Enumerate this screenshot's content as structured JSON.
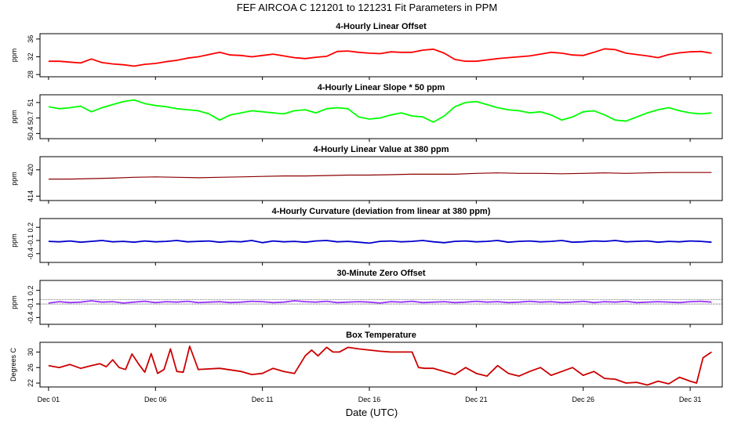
{
  "title": "FEF   AIRCOA C   121201 to 121231   Fit Parameters in PPM",
  "xlabel": "Date (UTC)",
  "xticks": [
    "Dec 01",
    "Dec 06",
    "Dec 11",
    "Dec 16",
    "Dec 21",
    "Dec 26",
    "Dec 31"
  ],
  "xtick_days": [
    1,
    6,
    11,
    16,
    21,
    26,
    31
  ],
  "xlim": [
    0.6,
    32.5
  ],
  "chart_data": [
    {
      "type": "line",
      "title": "4-Hourly Linear Offset",
      "ylabel": "ppm",
      "ylim": [
        27.5,
        37.2
      ],
      "yticks": [
        28,
        32,
        36
      ],
      "color": "#ff0000",
      "series": [
        {
          "x": [
            1,
            1.5,
            2,
            2.5,
            3,
            3.5,
            4,
            4.5,
            5,
            5.5,
            6,
            6.5,
            7,
            7.5,
            8,
            8.5,
            9,
            9.5,
            10,
            10.5,
            11,
            11.5,
            12,
            12.5,
            13,
            13.5,
            14,
            14.5,
            15,
            15.5,
            16,
            16.5,
            17,
            17.5,
            18,
            18.5,
            19,
            19.5,
            20,
            20.5,
            21,
            21.5,
            22,
            22.5,
            23,
            23.5,
            24,
            24.5,
            25,
            25.5,
            26,
            26.5,
            27,
            27.5,
            28,
            28.5,
            29,
            29.5,
            30,
            30.5,
            31,
            31.5,
            32
          ],
          "values": [
            31.0,
            31.0,
            30.8,
            30.6,
            31.5,
            30.7,
            30.4,
            30.2,
            29.9,
            30.3,
            30.5,
            30.9,
            31.2,
            31.7,
            32.0,
            32.5,
            33.0,
            32.4,
            32.3,
            32.0,
            32.3,
            32.6,
            32.2,
            31.8,
            31.6,
            31.9,
            32.1,
            33.2,
            33.3,
            33.0,
            32.8,
            32.7,
            33.1,
            33.0,
            33.0,
            33.5,
            33.7,
            32.8,
            31.4,
            31.0,
            31.0,
            31.3,
            31.6,
            31.8,
            32.0,
            32.2,
            32.6,
            33.0,
            32.8,
            32.4,
            32.3,
            33.0,
            33.8,
            33.6,
            32.8,
            32.5,
            32.2,
            31.8,
            32.5,
            32.9,
            33.1,
            33.2,
            32.8
          ]
        }
      ]
    },
    {
      "type": "line",
      "title": "4-Hourly Linear Slope * 50 ppm",
      "ylabel": "ppm",
      "ylim": [
        50.3,
        51.15
      ],
      "yticks": [
        50.4,
        50.7,
        51.0
      ],
      "color": "#00ff00",
      "series": [
        {
          "x": [
            1,
            1.5,
            2,
            2.5,
            3,
            3.5,
            4,
            4.5,
            5,
            5.5,
            6,
            6.5,
            7,
            7.5,
            8,
            8.5,
            9,
            9.5,
            10,
            10.5,
            11,
            11.5,
            12,
            12.5,
            13,
            13.5,
            14,
            14.5,
            15,
            15.5,
            16,
            16.5,
            17,
            17.5,
            18,
            18.5,
            19,
            19.5,
            20,
            20.5,
            21,
            21.5,
            22,
            22.5,
            23,
            23.5,
            24,
            24.5,
            25,
            25.5,
            26,
            26.5,
            27,
            27.5,
            28,
            28.5,
            29,
            29.5,
            30,
            30.5,
            31,
            31.5,
            32
          ],
          "values": [
            50.92,
            50.88,
            50.9,
            50.93,
            50.82,
            50.9,
            50.96,
            51.02,
            51.05,
            50.98,
            50.94,
            50.92,
            50.88,
            50.86,
            50.84,
            50.78,
            50.66,
            50.76,
            50.8,
            50.84,
            50.82,
            50.8,
            50.78,
            50.84,
            50.86,
            50.8,
            50.88,
            50.9,
            50.88,
            50.72,
            50.68,
            50.7,
            50.76,
            50.8,
            50.74,
            50.72,
            50.62,
            50.74,
            50.92,
            51.0,
            51.02,
            50.96,
            50.9,
            50.86,
            50.84,
            50.8,
            50.82,
            50.76,
            50.66,
            50.72,
            50.82,
            50.84,
            50.76,
            50.66,
            50.64,
            50.72,
            50.8,
            50.86,
            50.9,
            50.84,
            50.8,
            50.78,
            50.8
          ]
        }
      ]
    },
    {
      "type": "line",
      "title": "4-Hourly Linear Value at 380 ppm",
      "ylabel": "ppm",
      "ylim": [
        413.0,
        423.0
      ],
      "yticks": [
        414,
        420
      ],
      "color": "#8b0000",
      "series": [
        {
          "x": [
            1,
            2,
            3,
            4,
            5,
            6,
            7,
            8,
            9,
            10,
            11,
            12,
            13,
            14,
            15,
            16,
            17,
            18,
            19,
            20,
            21,
            22,
            23,
            24,
            25,
            26,
            27,
            28,
            29,
            30,
            31,
            32
          ],
          "values": [
            417.9,
            417.9,
            418.0,
            418.1,
            418.3,
            418.4,
            418.3,
            418.2,
            418.3,
            418.4,
            418.5,
            418.6,
            418.6,
            418.7,
            418.8,
            418.8,
            418.9,
            419.0,
            419.0,
            419.0,
            419.2,
            419.3,
            419.2,
            419.2,
            419.1,
            419.2,
            419.3,
            419.2,
            419.3,
            419.4,
            419.4,
            419.4
          ]
        }
      ]
    },
    {
      "type": "line",
      "title": "4-Hourly Curvature (deviation from linear at 380 ppm)",
      "ylabel": "ppm",
      "ylim": [
        -0.6,
        0.4
      ],
      "yticks": [
        -0.4,
        -0.1,
        0.2
      ],
      "color": "#0000cc",
      "series": [
        {
          "x": [
            1,
            1.5,
            2,
            2.5,
            3,
            3.5,
            4,
            4.5,
            5,
            5.5,
            6,
            6.5,
            7,
            7.5,
            8,
            8.5,
            9,
            9.5,
            10,
            10.5,
            11,
            11.5,
            12,
            12.5,
            13,
            13.5,
            14,
            14.5,
            15,
            15.5,
            16,
            16.5,
            17,
            17.5,
            18,
            18.5,
            19,
            19.5,
            20,
            20.5,
            21,
            21.5,
            22,
            22.5,
            23,
            23.5,
            24,
            24.5,
            25,
            25.5,
            26,
            26.5,
            27,
            27.5,
            28,
            28.5,
            29,
            29.5,
            30,
            30.5,
            31,
            31.5,
            32
          ],
          "values": [
            -0.12,
            -0.13,
            -0.11,
            -0.14,
            -0.12,
            -0.1,
            -0.13,
            -0.12,
            -0.14,
            -0.11,
            -0.13,
            -0.12,
            -0.1,
            -0.13,
            -0.12,
            -0.11,
            -0.14,
            -0.12,
            -0.13,
            -0.1,
            -0.15,
            -0.11,
            -0.13,
            -0.12,
            -0.14,
            -0.11,
            -0.1,
            -0.13,
            -0.12,
            -0.14,
            -0.16,
            -0.12,
            -0.11,
            -0.13,
            -0.12,
            -0.1,
            -0.13,
            -0.15,
            -0.12,
            -0.11,
            -0.13,
            -0.12,
            -0.1,
            -0.14,
            -0.12,
            -0.11,
            -0.13,
            -0.12,
            -0.1,
            -0.14,
            -0.13,
            -0.11,
            -0.12,
            -0.1,
            -0.13,
            -0.12,
            -0.11,
            -0.14,
            -0.12,
            -0.13,
            -0.11,
            -0.12,
            -0.14
          ]
        }
      ]
    },
    {
      "type": "line",
      "title": "30-Minute Zero Offset",
      "ylabel": "ppm",
      "ylim": [
        -0.55,
        0.42
      ],
      "yticks": [
        -0.4,
        -0.1,
        0.2
      ],
      "color": "#9933ff",
      "series": [
        {
          "x": [
            1,
            1.5,
            2,
            2.5,
            3,
            3.5,
            4,
            4.5,
            5,
            5.5,
            6,
            6.5,
            7,
            7.5,
            8,
            8.5,
            9,
            9.5,
            10,
            10.5,
            11,
            11.5,
            12,
            12.5,
            13,
            13.5,
            14,
            14.5,
            15,
            15.5,
            16,
            16.5,
            17,
            17.5,
            18,
            18.5,
            19,
            19.5,
            20,
            20.5,
            21,
            21.5,
            22,
            22.5,
            23,
            23.5,
            24,
            24.5,
            25,
            25.5,
            26,
            26.5,
            27,
            27.5,
            28,
            28.5,
            29,
            29.5,
            30,
            30.5,
            31,
            31.5,
            32
          ],
          "values": [
            -0.08,
            -0.05,
            -0.07,
            -0.06,
            -0.03,
            -0.06,
            -0.05,
            -0.08,
            -0.06,
            -0.04,
            -0.07,
            -0.05,
            -0.06,
            -0.04,
            -0.07,
            -0.06,
            -0.05,
            -0.07,
            -0.06,
            -0.04,
            -0.05,
            -0.07,
            -0.06,
            -0.03,
            -0.05,
            -0.06,
            -0.04,
            -0.07,
            -0.06,
            -0.05,
            -0.06,
            -0.08,
            -0.05,
            -0.06,
            -0.04,
            -0.07,
            -0.06,
            -0.05,
            -0.07,
            -0.06,
            -0.04,
            -0.06,
            -0.05,
            -0.07,
            -0.06,
            -0.04,
            -0.06,
            -0.05,
            -0.07,
            -0.06,
            -0.04,
            -0.07,
            -0.05,
            -0.06,
            -0.04,
            -0.07,
            -0.06,
            -0.05,
            -0.06,
            -0.07,
            -0.05,
            -0.04,
            -0.06
          ]
        }
      ]
    },
    {
      "type": "line",
      "title": "Box Temperature",
      "ylabel": "Degrees C",
      "ylim": [
        21.0,
        32.5
      ],
      "yticks": [
        22,
        26,
        30
      ],
      "color": "#cc0000",
      "series": [
        {
          "x": [
            1,
            1.5,
            2,
            2.5,
            3,
            3.4,
            3.7,
            4,
            4.3,
            4.6,
            4.9,
            5.2,
            5.5,
            5.8,
            6.1,
            6.4,
            6.7,
            7.0,
            7.3,
            7.6,
            8,
            9,
            10,
            10.5,
            11,
            11.5,
            12,
            12.5,
            13,
            13.3,
            13.6,
            14,
            14.3,
            14.6,
            15,
            15.5,
            16,
            16.5,
            17,
            17.5,
            18,
            18.3,
            18.6,
            19,
            19.5,
            20,
            20.5,
            21,
            21.5,
            22,
            22.5,
            23,
            23.5,
            24,
            24.5,
            25,
            25.5,
            26,
            26.5,
            27,
            27.5,
            28,
            28.5,
            29,
            29.5,
            30,
            30.5,
            31,
            31.3,
            31.6,
            32
          ],
          "values": [
            26.5,
            26.0,
            26.8,
            25.8,
            26.5,
            27.0,
            26.2,
            28.0,
            26.0,
            25.5,
            29.5,
            27.0,
            24.8,
            29.6,
            24.5,
            25.5,
            30.8,
            25.0,
            24.8,
            31.5,
            25.5,
            25.8,
            25.0,
            24.2,
            24.5,
            25.8,
            25.0,
            24.5,
            29.0,
            30.5,
            29.0,
            31.2,
            30.0,
            30.0,
            31.2,
            30.8,
            30.5,
            30.2,
            30.0,
            30.0,
            30.0,
            26.0,
            25.8,
            25.8,
            25.0,
            24.2,
            26.0,
            24.5,
            23.8,
            26.5,
            24.5,
            23.8,
            25.0,
            26.0,
            24.0,
            25.0,
            26.0,
            24.0,
            25.0,
            23.2,
            23.0,
            22.0,
            22.2,
            21.5,
            22.5,
            21.8,
            23.5,
            22.5,
            22.0,
            28.5,
            30.0
          ]
        }
      ]
    }
  ]
}
